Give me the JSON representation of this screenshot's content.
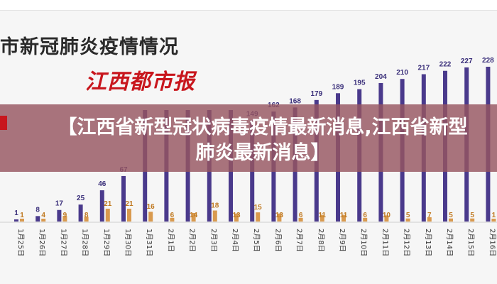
{
  "header": {
    "chart_title": "市新冠肺炎疫情情况",
    "logo_text": "江西都市报"
  },
  "banner": {
    "text": "【江西省新型冠状病毒疫情最新消息,江西省新型肺炎最新消息】"
  },
  "colors": {
    "series_new": "#4a3a8c",
    "series_other": "#d99a4e",
    "banner_bg": "#965660",
    "logo": "#c8161d"
  },
  "chart_data": {
    "type": "bar",
    "title": "市新冠肺炎疫情情况",
    "categories": [
      "1月25日",
      "1月26日",
      "1月27日",
      "1月28日",
      "1月29日",
      "1月30日",
      "1月31日",
      "2月1日",
      "2月2日",
      "2月3日",
      "2月4日",
      "2月5日",
      "2月6日",
      "2月7日",
      "2月8日",
      "2月9日",
      "2月10日",
      "2月11日",
      "2月12日",
      "2月13日",
      "2月14日",
      "2月15日",
      "2月16日"
    ],
    "series": [
      {
        "values": [
          1,
          8,
          17,
          25,
          46,
          67,
          null,
          null,
          null,
          null,
          null,
          149,
          162,
          168,
          179,
          189,
          195,
          204,
          210,
          217,
          222,
          227,
          228
        ]
      },
      {
        "values": [
          1,
          4,
          9,
          8,
          21,
          21,
          16,
          6,
          14,
          18,
          13,
          15,
          13,
          6,
          11,
          11,
          6,
          10,
          5,
          7,
          5,
          5,
          1
        ]
      }
    ],
    "ylim": [
      0,
      240
    ],
    "grid": false,
    "xlabel": "",
    "ylabel": ""
  }
}
